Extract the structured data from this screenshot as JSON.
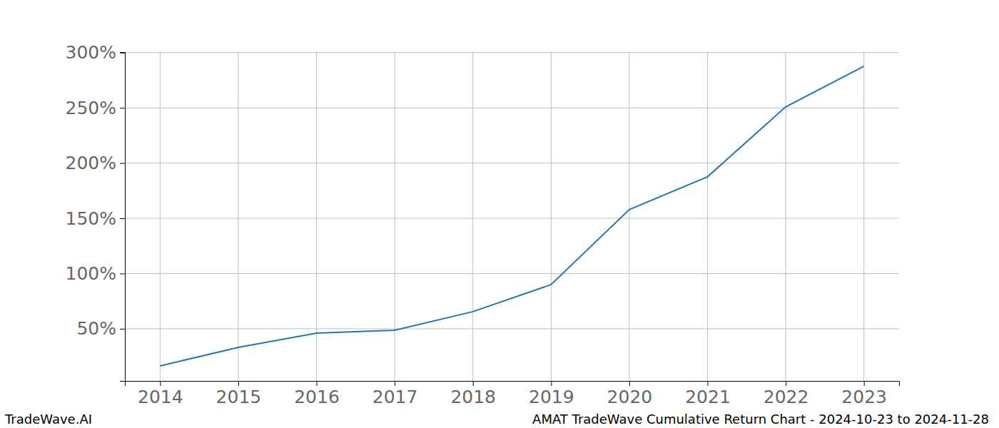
{
  "chart_data": {
    "type": "line",
    "title": "AMAT TradeWave Cumulative Return Chart - 2024-10-23 to 2024-11-28",
    "source": "TradeWave.AI",
    "x": [
      2014,
      2015,
      2016,
      2017,
      2018,
      2019,
      2020,
      2021,
      2022,
      2023
    ],
    "values": [
      16.4,
      33.2,
      46.1,
      48.7,
      65.5,
      90.0,
      157.9,
      187.6,
      250.9,
      287.7
    ],
    "color": "#1f77b4",
    "xlim": [
      2013.55,
      2023.45
    ],
    "xticks": [
      2014,
      2015,
      2016,
      2017,
      2018,
      2019,
      2020,
      2021,
      2022,
      2023
    ],
    "ylim": [
      2.8,
      300.5
    ],
    "yticks": [
      {
        "value": 50,
        "label": "50%"
      },
      {
        "value": 100,
        "label": "100%"
      },
      {
        "value": 150,
        "label": "150%"
      },
      {
        "value": 200,
        "label": "200%"
      },
      {
        "value": 250,
        "label": "250%"
      },
      {
        "value": 300,
        "label": "300%"
      }
    ],
    "grid": true
  }
}
